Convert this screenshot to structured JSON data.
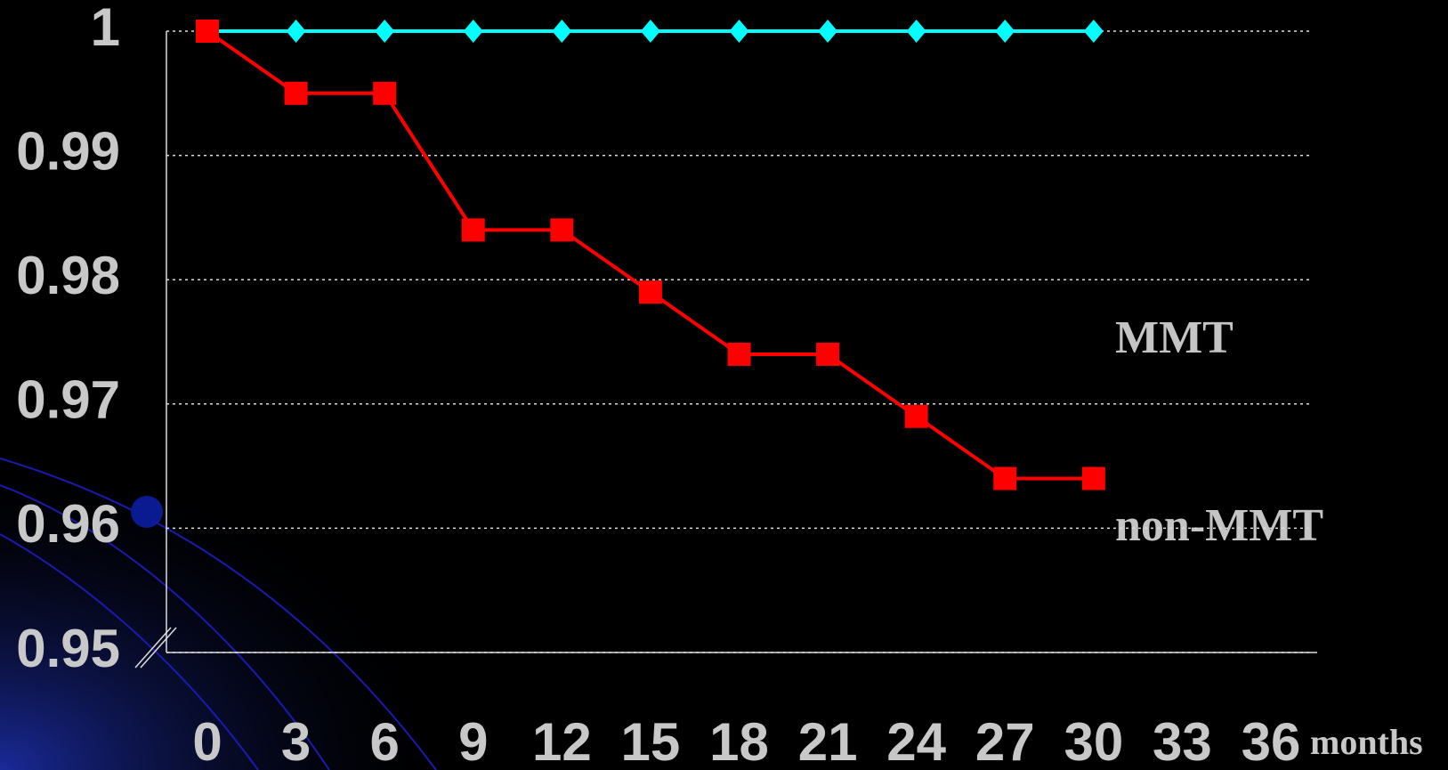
{
  "chart_data": {
    "type": "line",
    "x": [
      0,
      3,
      6,
      9,
      12,
      15,
      18,
      21,
      24,
      27,
      30
    ],
    "series": [
      {
        "name": "MMT",
        "color": "#00ffff",
        "marker": "diamond",
        "values": [
          1,
          1,
          1,
          1,
          1,
          1,
          1,
          1,
          1,
          1,
          1
        ]
      },
      {
        "name": "non-MMT",
        "color": "#ff0000",
        "marker": "square",
        "values": [
          1,
          0.995,
          0.995,
          0.984,
          0.984,
          0.979,
          0.974,
          0.974,
          0.969,
          0.964,
          0.964
        ]
      }
    ],
    "xlim": [
      0,
      36
    ],
    "xticks": [
      0,
      3,
      6,
      9,
      12,
      15,
      18,
      21,
      24,
      27,
      30,
      33,
      36
    ],
    "ylim": [
      0.95,
      1
    ],
    "yticks": [
      0.95,
      0.96,
      0.97,
      0.98,
      0.99,
      1
    ],
    "x_label": "months",
    "grid": true
  }
}
